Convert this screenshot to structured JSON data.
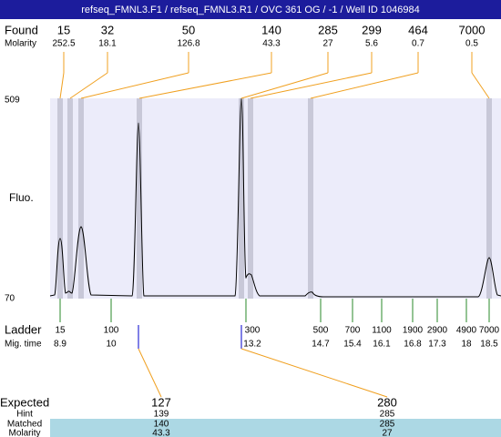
{
  "header": {
    "title": "refseq_FMNL3.F1 / refseq_FMNL3.R1 / OVC 361 OG / -1 / Well ID 1046984"
  },
  "found": {
    "label": "Found",
    "molarity_label": "Molarity",
    "peaks": [
      {
        "size": 15,
        "molarity": 252.5
      },
      {
        "size": 32,
        "molarity": 18.1
      },
      {
        "size": 50,
        "molarity": 126.8
      },
      {
        "size": 140,
        "molarity": 43.3
      },
      {
        "size": 285,
        "molarity": 27
      },
      {
        "size": 299,
        "molarity": 5.6
      },
      {
        "size": 464,
        "molarity": 0.7
      },
      {
        "size": 7000,
        "molarity": 0.5
      }
    ]
  },
  "plot": {
    "y_label": "Fluo.",
    "y_max": 509,
    "y_min": 70
  },
  "ladder": {
    "label": "Ladder",
    "time_label": "Mig. time",
    "bands": [
      {
        "size": 15,
        "time": 8.9
      },
      {
        "size": 100,
        "time": 10
      },
      {
        "size": 300,
        "time": 13.2
      },
      {
        "size": 500,
        "time": 14.7
      },
      {
        "size": 700,
        "time": 15.4
      },
      {
        "size": 1100,
        "time": 16.1
      },
      {
        "size": 1900,
        "time": 16.8
      },
      {
        "size": 2900,
        "time": 17.3
      },
      {
        "size": 4900,
        "time": 18
      },
      {
        "size": 7000,
        "time": 18.5
      }
    ]
  },
  "expected": {
    "label": "Expected",
    "hint_label": "Hint",
    "matched_label": "Matched",
    "molarity_label": "Molarity",
    "columns": [
      {
        "expected": 127,
        "hint": 139,
        "matched": 140,
        "molarity": 43.3
      },
      {
        "expected": 280,
        "hint": 285,
        "matched": 285,
        "molarity": 27
      }
    ]
  }
}
